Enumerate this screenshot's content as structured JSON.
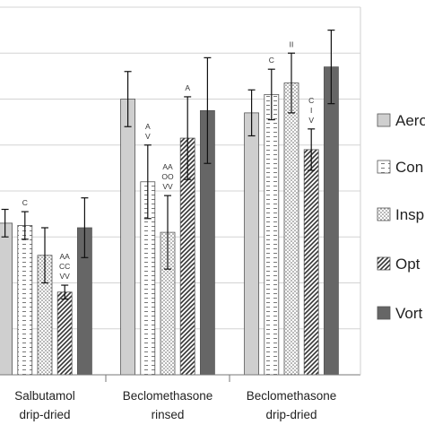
{
  "chart_data": {
    "type": "bar",
    "categories": [
      {
        "lines": [
          "Salbutamol",
          "drip-dried"
        ]
      },
      {
        "lines": [
          "Beclomethasone",
          "rinsed"
        ]
      },
      {
        "lines": [
          "Beclomethasone",
          "drip-dried"
        ]
      }
    ],
    "ylim": [
      0,
      8
    ],
    "grid": true,
    "legend_position": "right",
    "series": [
      {
        "name": "Aero",
        "pattern": "solid-light",
        "color": "#cfcfcf",
        "values": [
          3.3,
          6.0,
          5.7
        ],
        "errors": [
          0.3,
          0.6,
          0.5
        ]
      },
      {
        "name": "Con",
        "pattern": "dashes",
        "color": "#ffffff",
        "values": [
          3.25,
          4.2,
          6.1
        ],
        "errors": [
          0.3,
          0.8,
          0.55
        ]
      },
      {
        "name": "Insp",
        "pattern": "dots",
        "color": "#ffffff",
        "values": [
          2.6,
          3.1,
          6.35
        ],
        "errors": [
          0.6,
          0.8,
          0.65
        ]
      },
      {
        "name": "Opt",
        "pattern": "diagonal",
        "color": "#ffffff",
        "values": [
          1.8,
          5.15,
          4.9
        ],
        "errors": [
          0.15,
          0.9,
          0.45
        ]
      },
      {
        "name": "Vort",
        "pattern": "solid-dark",
        "color": "#666666",
        "values": [
          3.2,
          5.75,
          6.7
        ],
        "errors": [
          0.65,
          1.15,
          0.8
        ]
      }
    ],
    "annotations": [
      {
        "group": 0,
        "series": 1,
        "lines": [
          "C"
        ]
      },
      {
        "group": 0,
        "series": 3,
        "lines": [
          "AA",
          "CC",
          "VV"
        ]
      },
      {
        "group": 1,
        "series": 1,
        "lines": [
          "A",
          "V"
        ]
      },
      {
        "group": 1,
        "series": 2,
        "lines": [
          "AA",
          "OO",
          "VV"
        ]
      },
      {
        "group": 1,
        "series": 3,
        "lines": [
          "A"
        ]
      },
      {
        "group": 2,
        "series": 1,
        "lines": [
          "C"
        ]
      },
      {
        "group": 2,
        "series": 2,
        "lines": [
          "II"
        ]
      },
      {
        "group": 2,
        "series": 3,
        "lines": [
          "C",
          "I",
          "V"
        ]
      }
    ]
  }
}
